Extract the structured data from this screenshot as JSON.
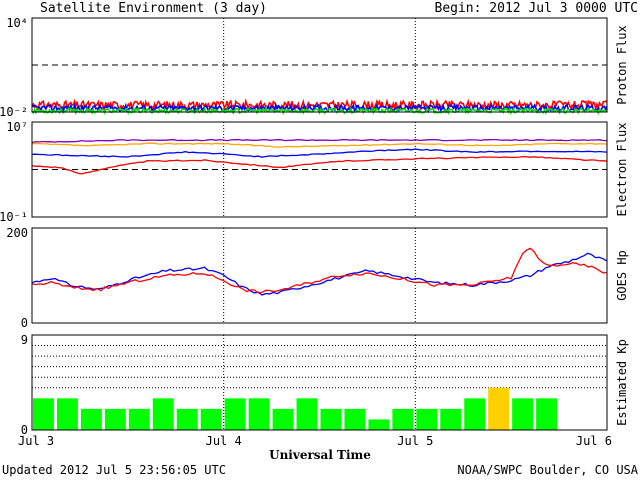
{
  "header": {
    "title": "Satellite Environment (3 day)",
    "begin": "Begin:  2012 Jul 3 0000 UTC"
  },
  "footer": {
    "updated": "Updated 2012 Jul  5 23:56:05 UTC",
    "credit": "NOAA/SWPC Boulder, CO USA"
  },
  "chart_data": [
    {
      "type": "line",
      "ylabel": "Proton Flux",
      "yscale": "log",
      "ylim": [
        0.01,
        10000
      ],
      "tick_labels": [
        "10⁴",
        "10⁻²"
      ],
      "reference_line": 10,
      "series": [
        {
          "color": "#ff0000",
          "level": 0.028,
          "jitter": 0.25
        },
        {
          "color": "#0000ff",
          "level": 0.018,
          "jitter": 0.18
        },
        {
          "color": "#00dd00",
          "level": 0.012,
          "jitter": 0.14
        }
      ]
    },
    {
      "type": "line",
      "ylabel": "Electron Flux",
      "yscale": "log",
      "ylim": [
        0.1,
        10000000
      ],
      "tick_labels": [
        "10⁷",
        "10⁻¹"
      ],
      "reference_line": 1000,
      "series": [
        {
          "color": "#8000c0",
          "x": [
            0,
            0.5,
            1.0,
            1.5,
            2.0,
            2.5,
            3.0
          ],
          "y": [
            200000,
            300000,
            300000,
            300000,
            300000,
            300000,
            300000
          ]
        },
        {
          "color": "#ffa500",
          "x": [
            0,
            0.3,
            0.6,
            1.0,
            1.3,
            1.6,
            2.0,
            2.4,
            2.7,
            3.0
          ],
          "y": [
            150000,
            100000,
            150000,
            150000,
            80000,
            100000,
            150000,
            100000,
            150000,
            150000
          ]
        },
        {
          "color": "#0000ff",
          "x": [
            0,
            0.2,
            0.5,
            0.8,
            1.0,
            1.2,
            1.5,
            1.8,
            2.0,
            2.3,
            2.6,
            3.0
          ],
          "y": [
            20000,
            15000,
            12000,
            30000,
            20000,
            12000,
            20000,
            40000,
            50000,
            30000,
            35000,
            30000
          ]
        },
        {
          "color": "#ff0000",
          "x": [
            0,
            0.15,
            0.25,
            0.4,
            0.6,
            0.9,
            1.1,
            1.3,
            1.6,
            2.0,
            2.3,
            2.6,
            3.0
          ],
          "y": [
            2000,
            1500,
            400,
            1500,
            5000,
            6000,
            3000,
            1500,
            5000,
            8000,
            10000,
            12000,
            5000
          ]
        }
      ]
    },
    {
      "type": "line",
      "ylabel": "GOES Hp",
      "ylim": [
        0,
        200
      ],
      "tick_labels": [
        "200",
        "0"
      ],
      "series": [
        {
          "color": "#0000ff",
          "x": [
            0,
            0.1,
            0.2,
            0.35,
            0.5,
            0.7,
            0.9,
            1.0,
            1.1,
            1.2,
            1.3,
            1.45,
            1.6,
            1.75,
            1.9,
            2.1,
            2.3,
            2.5,
            2.6,
            2.7,
            2.8,
            2.9,
            3.0
          ],
          "y": [
            85,
            95,
            80,
            70,
            90,
            110,
            115,
            100,
            75,
            60,
            65,
            80,
            95,
            110,
            100,
            85,
            80,
            90,
            100,
            120,
            130,
            145,
            130
          ]
        },
        {
          "color": "#ff0000",
          "x": [
            0,
            0.1,
            0.2,
            0.35,
            0.5,
            0.7,
            0.9,
            1.0,
            1.1,
            1.2,
            1.3,
            1.45,
            1.6,
            1.75,
            1.9,
            2.1,
            2.3,
            2.5,
            2.55,
            2.6,
            2.65,
            2.7,
            2.8,
            2.9,
            3.0
          ],
          "y": [
            80,
            85,
            75,
            70,
            85,
            100,
            105,
            90,
            70,
            65,
            70,
            85,
            100,
            105,
            95,
            80,
            80,
            95,
            140,
            160,
            130,
            120,
            125,
            120,
            105
          ]
        }
      ]
    },
    {
      "type": "bar",
      "ylabel": "Estimated Kp",
      "ylim": [
        0,
        9
      ],
      "tick_labels": [
        "9",
        "0"
      ],
      "grid_levels": [
        4,
        5,
        6,
        7,
        8
      ],
      "values": [
        3,
        3,
        2,
        2,
        2,
        3,
        2,
        2,
        3,
        3,
        2,
        3,
        2,
        2,
        1,
        2,
        2,
        2,
        3,
        4,
        3,
        3
      ],
      "colors": [
        "#00ff00",
        "#00ff00",
        "#00ff00",
        "#00ff00",
        "#00ff00",
        "#00ff00",
        "#00ff00",
        "#00ff00",
        "#00ff00",
        "#00ff00",
        "#00ff00",
        "#00ff00",
        "#00ff00",
        "#00ff00",
        "#00ff00",
        "#00ff00",
        "#00ff00",
        "#00ff00",
        "#00ff00",
        "#ffd000",
        "#00ff00",
        "#00ff00"
      ]
    }
  ],
  "x_axis": {
    "xlim": [
      0,
      3
    ],
    "ticks": [
      0,
      1,
      2,
      3
    ],
    "tick_labels": [
      "Jul 3",
      "Jul 4",
      "Jul 5",
      "Jul 6"
    ],
    "xlabel": "Universal Time"
  }
}
